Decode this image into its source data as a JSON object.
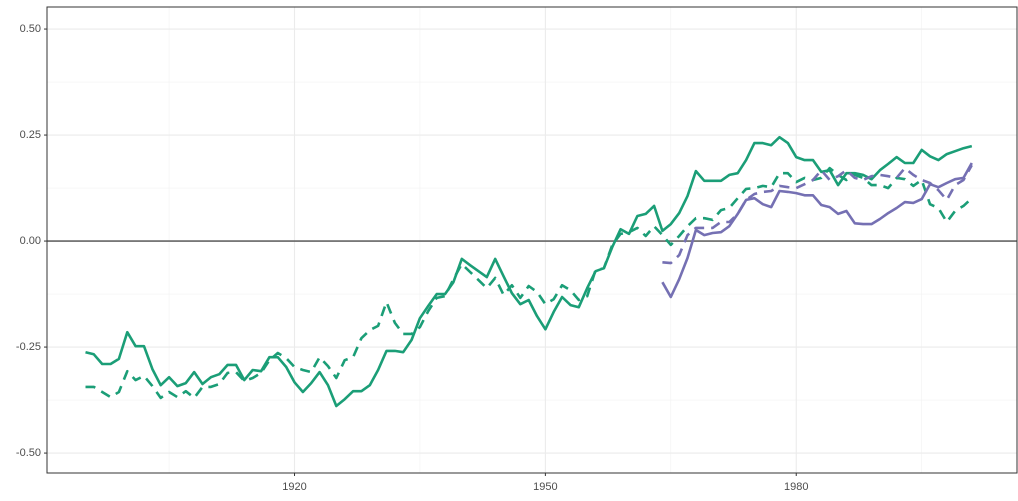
{
  "chart_data": {
    "type": "line",
    "x": [
      1895,
      1896,
      1897,
      1898,
      1899,
      1900,
      1901,
      1902,
      1903,
      1904,
      1905,
      1906,
      1907,
      1908,
      1909,
      1910,
      1911,
      1912,
      1913,
      1914,
      1915,
      1916,
      1917,
      1918,
      1919,
      1920,
      1921,
      1922,
      1923,
      1924,
      1925,
      1926,
      1927,
      1928,
      1929,
      1930,
      1931,
      1932,
      1933,
      1934,
      1935,
      1936,
      1937,
      1938,
      1939,
      1940,
      1941,
      1942,
      1943,
      1944,
      1945,
      1946,
      1947,
      1948,
      1949,
      1950,
      1951,
      1952,
      1953,
      1954,
      1955,
      1956,
      1957,
      1958,
      1959,
      1960,
      1961,
      1962,
      1963,
      1964,
      1965,
      1966,
      1967,
      1968,
      1969,
      1970,
      1971,
      1972,
      1973,
      1974,
      1975,
      1976,
      1977,
      1978,
      1979,
      1980,
      1981,
      1982,
      1983,
      1984,
      1985,
      1986,
      1987,
      1988,
      1989,
      1990,
      1991,
      1992,
      1993,
      1994,
      1995,
      1996,
      1997,
      1998,
      1999,
      2000,
      2001
    ],
    "series": [
      {
        "color": "#1b9e77",
        "dash": "solid",
        "values": [
          -0.262,
          -0.267,
          -0.29,
          -0.29,
          -0.278,
          -0.215,
          -0.248,
          -0.248,
          -0.302,
          -0.34,
          -0.321,
          -0.342,
          -0.335,
          -0.309,
          -0.337,
          -0.321,
          -0.314,
          -0.292,
          -0.292,
          -0.328,
          -0.304,
          -0.307,
          -0.274,
          -0.274,
          -0.297,
          -0.333,
          -0.356,
          -0.335,
          -0.309,
          -0.34,
          -0.389,
          -0.373,
          -0.354,
          -0.354,
          -0.34,
          -0.304,
          -0.259,
          -0.259,
          -0.262,
          -0.233,
          -0.182,
          -0.153,
          -0.125,
          -0.125,
          -0.097,
          -0.042,
          -0.057,
          -0.071,
          -0.085,
          -0.042,
          -0.083,
          -0.123,
          -0.149,
          -0.139,
          -0.177,
          -0.208,
          -0.167,
          -0.132,
          -0.151,
          -0.156,
          -0.111,
          -0.071,
          -0.064,
          -0.014,
          0.028,
          0.017,
          0.059,
          0.064,
          0.083,
          0.024,
          0.04,
          0.066,
          0.106,
          0.165,
          0.142,
          0.142,
          0.142,
          0.156,
          0.16,
          0.191,
          0.231,
          0.231,
          0.226,
          0.245,
          0.231,
          0.198,
          0.191,
          0.191,
          0.163,
          0.167,
          0.132,
          0.16,
          0.16,
          0.156,
          0.146,
          0.167,
          0.182,
          0.198,
          0.184,
          0.184,
          0.215,
          0.2,
          0.191,
          0.205,
          0.212,
          0.219,
          0.224
        ]
      },
      {
        "color": "#1b9e77",
        "dash": "dashed",
        "values": [
          -0.344,
          -0.344,
          -0.356,
          -0.368,
          -0.356,
          -0.307,
          -0.328,
          -0.318,
          -0.342,
          -0.37,
          -0.356,
          -0.368,
          -0.354,
          -0.37,
          -0.344,
          -0.344,
          -0.337,
          -0.311,
          -0.309,
          -0.33,
          -0.323,
          -0.311,
          -0.281,
          -0.264,
          -0.276,
          -0.297,
          -0.304,
          -0.309,
          -0.274,
          -0.295,
          -0.323,
          -0.281,
          -0.274,
          -0.229,
          -0.21,
          -0.2,
          -0.144,
          -0.193,
          -0.219,
          -0.219,
          -0.203,
          -0.165,
          -0.134,
          -0.13,
          -0.09,
          -0.054,
          -0.073,
          -0.092,
          -0.111,
          -0.087,
          -0.127,
          -0.104,
          -0.134,
          -0.106,
          -0.12,
          -0.149,
          -0.137,
          -0.104,
          -0.116,
          -0.139,
          -0.13,
          -0.068,
          -0.064,
          -0.009,
          0.017,
          0.021,
          0.031,
          0.012,
          0.035,
          0.014,
          -0.009,
          0.012,
          0.035,
          0.054,
          0.054,
          0.05,
          0.073,
          0.078,
          0.101,
          0.123,
          0.125,
          0.13,
          0.127,
          0.16,
          0.16,
          0.139,
          0.149,
          0.144,
          0.149,
          0.172,
          0.156,
          0.144,
          0.156,
          0.149,
          0.132,
          0.132,
          0.125,
          0.149,
          0.146,
          0.13,
          0.144,
          0.087,
          0.078,
          0.045,
          0.071,
          0.083,
          0.101
        ]
      },
      {
        "color": "#7570b3",
        "dash": "solid",
        "values": [
          null,
          null,
          null,
          null,
          null,
          null,
          null,
          null,
          null,
          null,
          null,
          null,
          null,
          null,
          null,
          null,
          null,
          null,
          null,
          null,
          null,
          null,
          null,
          null,
          null,
          null,
          null,
          null,
          null,
          null,
          null,
          null,
          null,
          null,
          null,
          null,
          null,
          null,
          null,
          null,
          null,
          null,
          null,
          null,
          null,
          null,
          null,
          null,
          null,
          null,
          null,
          null,
          null,
          null,
          null,
          null,
          null,
          null,
          null,
          null,
          null,
          null,
          null,
          null,
          null,
          null,
          null,
          null,
          null,
          -0.097,
          -0.132,
          -0.09,
          -0.04,
          0.026,
          0.014,
          0.019,
          0.021,
          0.035,
          0.064,
          0.097,
          0.101,
          0.087,
          0.08,
          0.118,
          0.116,
          0.113,
          0.108,
          0.108,
          0.085,
          0.08,
          0.064,
          0.071,
          0.042,
          0.04,
          0.04,
          0.052,
          0.066,
          0.078,
          0.092,
          0.09,
          0.099,
          0.134,
          0.127,
          0.137,
          0.146,
          0.149,
          0.184
        ]
      },
      {
        "color": "#7570b3",
        "dash": "dashed",
        "values": [
          null,
          null,
          null,
          null,
          null,
          null,
          null,
          null,
          null,
          null,
          null,
          null,
          null,
          null,
          null,
          null,
          null,
          null,
          null,
          null,
          null,
          null,
          null,
          null,
          null,
          null,
          null,
          null,
          null,
          null,
          null,
          null,
          null,
          null,
          null,
          null,
          null,
          null,
          null,
          null,
          null,
          null,
          null,
          null,
          null,
          null,
          null,
          null,
          null,
          null,
          null,
          null,
          null,
          null,
          null,
          null,
          null,
          null,
          null,
          null,
          null,
          null,
          null,
          null,
          null,
          null,
          null,
          null,
          null,
          -0.05,
          -0.052,
          -0.033,
          0.014,
          0.031,
          0.031,
          0.031,
          0.045,
          0.045,
          0.064,
          0.097,
          0.111,
          0.116,
          0.118,
          0.13,
          0.127,
          0.125,
          0.134,
          0.144,
          0.167,
          0.144,
          0.153,
          0.167,
          0.149,
          0.144,
          0.153,
          0.156,
          0.153,
          0.149,
          0.172,
          0.156,
          0.144,
          0.137,
          0.12,
          0.097,
          0.132,
          0.144,
          0.179
        ]
      }
    ],
    "xlim": [
      1890.4,
      2006.4
    ],
    "xticks": [
      1920,
      1950,
      1980
    ],
    "xminor": [
      1905,
      1935,
      1965,
      1995
    ],
    "ylim": [
      -0.547,
      0.552
    ],
    "yticks": [
      {
        "value": -0.5,
        "label": "-0.50"
      },
      {
        "value": -0.25,
        "label": "-0.25"
      },
      {
        "value": 0,
        "label": "0.00"
      },
      {
        "value": 0.25,
        "label": "0.25"
      },
      {
        "value": 0.5,
        "label": "0.50"
      }
    ],
    "yminor": [
      -0.375,
      -0.125,
      0.125,
      0.375
    ],
    "hlines": [
      0
    ],
    "grid": true
  }
}
